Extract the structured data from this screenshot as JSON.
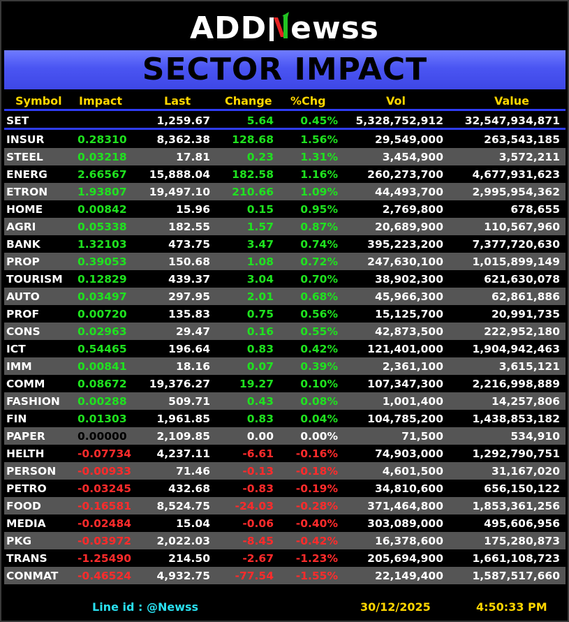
{
  "logo": {
    "left": "ADD",
    "right": "ewss"
  },
  "banner": {
    "title": "SECTOR IMPACT"
  },
  "columns": {
    "symbol": "Symbol",
    "impact": "Impact",
    "last": "Last",
    "change": "Change",
    "pct": "%Chg",
    "vol": "Vol",
    "value": "Value"
  },
  "index": {
    "symbol": "SET",
    "impact": "",
    "last": "1,259.67",
    "change": "5.64",
    "pct": "0.45%",
    "vol": "5,328,752,912",
    "value": "32,547,934,871"
  },
  "rows": [
    {
      "symbol": "INSUR",
      "impact": "0.28310",
      "last": "8,362.38",
      "change": "128.68",
      "pct": "1.56%",
      "vol": "29,549,000",
      "value": "263,543,185",
      "dir": "pos"
    },
    {
      "symbol": "STEEL",
      "impact": "0.03218",
      "last": "17.81",
      "change": "0.23",
      "pct": "1.31%",
      "vol": "3,454,900",
      "value": "3,572,211",
      "dir": "pos"
    },
    {
      "symbol": "ENERG",
      "impact": "2.66567",
      "last": "15,888.04",
      "change": "182.58",
      "pct": "1.16%",
      "vol": "260,273,700",
      "value": "4,677,931,623",
      "dir": "pos"
    },
    {
      "symbol": "ETRON",
      "impact": "1.93807",
      "last": "19,497.10",
      "change": "210.66",
      "pct": "1.09%",
      "vol": "44,493,700",
      "value": "2,995,954,362",
      "dir": "pos"
    },
    {
      "symbol": "HOME",
      "impact": "0.00842",
      "last": "15.96",
      "change": "0.15",
      "pct": "0.95%",
      "vol": "2,769,800",
      "value": "678,655",
      "dir": "pos"
    },
    {
      "symbol": "AGRI",
      "impact": "0.05338",
      "last": "182.55",
      "change": "1.57",
      "pct": "0.87%",
      "vol": "20,689,900",
      "value": "110,567,960",
      "dir": "pos"
    },
    {
      "symbol": "BANK",
      "impact": "1.32103",
      "last": "473.75",
      "change": "3.47",
      "pct": "0.74%",
      "vol": "395,223,200",
      "value": "7,377,720,630",
      "dir": "pos"
    },
    {
      "symbol": "PROP",
      "impact": "0.39053",
      "last": "150.68",
      "change": "1.08",
      "pct": "0.72%",
      "vol": "247,630,100",
      "value": "1,015,899,149",
      "dir": "pos"
    },
    {
      "symbol": "TOURISM",
      "impact": "0.12829",
      "last": "439.37",
      "change": "3.04",
      "pct": "0.70%",
      "vol": "38,902,300",
      "value": "621,630,078",
      "dir": "pos"
    },
    {
      "symbol": "AUTO",
      "impact": "0.03497",
      "last": "297.95",
      "change": "2.01",
      "pct": "0.68%",
      "vol": "45,966,300",
      "value": "62,861,886",
      "dir": "pos"
    },
    {
      "symbol": "PROF",
      "impact": "0.00720",
      "last": "135.83",
      "change": "0.75",
      "pct": "0.56%",
      "vol": "15,125,700",
      "value": "20,991,735",
      "dir": "pos"
    },
    {
      "symbol": "CONS",
      "impact": "0.02963",
      "last": "29.47",
      "change": "0.16",
      "pct": "0.55%",
      "vol": "42,873,500",
      "value": "222,952,180",
      "dir": "pos"
    },
    {
      "symbol": "ICT",
      "impact": "0.54465",
      "last": "196.64",
      "change": "0.83",
      "pct": "0.42%",
      "vol": "121,401,000",
      "value": "1,904,942,463",
      "dir": "pos"
    },
    {
      "symbol": "IMM",
      "impact": "0.00841",
      "last": "18.16",
      "change": "0.07",
      "pct": "0.39%",
      "vol": "2,361,100",
      "value": "3,615,121",
      "dir": "pos"
    },
    {
      "symbol": "COMM",
      "impact": "0.08672",
      "last": "19,376.27",
      "change": "19.27",
      "pct": "0.10%",
      "vol": "107,347,300",
      "value": "2,216,998,889",
      "dir": "pos"
    },
    {
      "symbol": "FASHION",
      "impact": "0.00288",
      "last": "509.71",
      "change": "0.43",
      "pct": "0.08%",
      "vol": "1,001,400",
      "value": "14,257,806",
      "dir": "pos"
    },
    {
      "symbol": "FIN",
      "impact": "0.01303",
      "last": "1,961.85",
      "change": "0.83",
      "pct": "0.04%",
      "vol": "104,785,200",
      "value": "1,438,853,182",
      "dir": "pos"
    },
    {
      "symbol": "PAPER",
      "impact": "0.00000",
      "last": "2,109.85",
      "change": "0.00",
      "pct": "0.00%",
      "vol": "71,500",
      "value": "534,910",
      "dir": "zero"
    },
    {
      "symbol": "HELTH",
      "impact": "-0.07734",
      "last": "4,237.11",
      "change": "-6.61",
      "pct": "-0.16%",
      "vol": "74,903,000",
      "value": "1,292,790,751",
      "dir": "neg"
    },
    {
      "symbol": "PERSON",
      "impact": "-0.00933",
      "last": "71.46",
      "change": "-0.13",
      "pct": "-0.18%",
      "vol": "4,601,500",
      "value": "31,167,020",
      "dir": "neg"
    },
    {
      "symbol": "PETRO",
      "impact": "-0.03245",
      "last": "432.68",
      "change": "-0.83",
      "pct": "-0.19%",
      "vol": "34,810,600",
      "value": "656,150,122",
      "dir": "neg"
    },
    {
      "symbol": "FOOD",
      "impact": "-0.16581",
      "last": "8,524.75",
      "change": "-24.03",
      "pct": "-0.28%",
      "vol": "371,464,800",
      "value": "1,853,361,256",
      "dir": "neg"
    },
    {
      "symbol": "MEDIA",
      "impact": "-0.02484",
      "last": "15.04",
      "change": "-0.06",
      "pct": "-0.40%",
      "vol": "303,089,000",
      "value": "495,606,956",
      "dir": "neg"
    },
    {
      "symbol": "PKG",
      "impact": "-0.03972",
      "last": "2,022.03",
      "change": "-8.45",
      "pct": "-0.42%",
      "vol": "16,378,600",
      "value": "175,280,873",
      "dir": "neg"
    },
    {
      "symbol": "TRANS",
      "impact": "-1.25490",
      "last": "214.50",
      "change": "-2.67",
      "pct": "-1.23%",
      "vol": "205,694,900",
      "value": "1,661,108,723",
      "dir": "neg"
    },
    {
      "symbol": "CONMAT",
      "impact": "-0.46524",
      "last": "4,932.75",
      "change": "-77.54",
      "pct": "-1.55%",
      "vol": "22,149,400",
      "value": "1,587,517,660",
      "dir": "neg"
    }
  ],
  "footer": {
    "line_id": "Line id  : @Newss",
    "date": "30/12/2025",
    "time": "4:50:33 PM"
  },
  "colors": {
    "positive": "#1fe21f",
    "negative": "#ff2b2b",
    "header": "#ffd600",
    "banner": "#4a55f2",
    "footer_line": "#29e0f0"
  }
}
